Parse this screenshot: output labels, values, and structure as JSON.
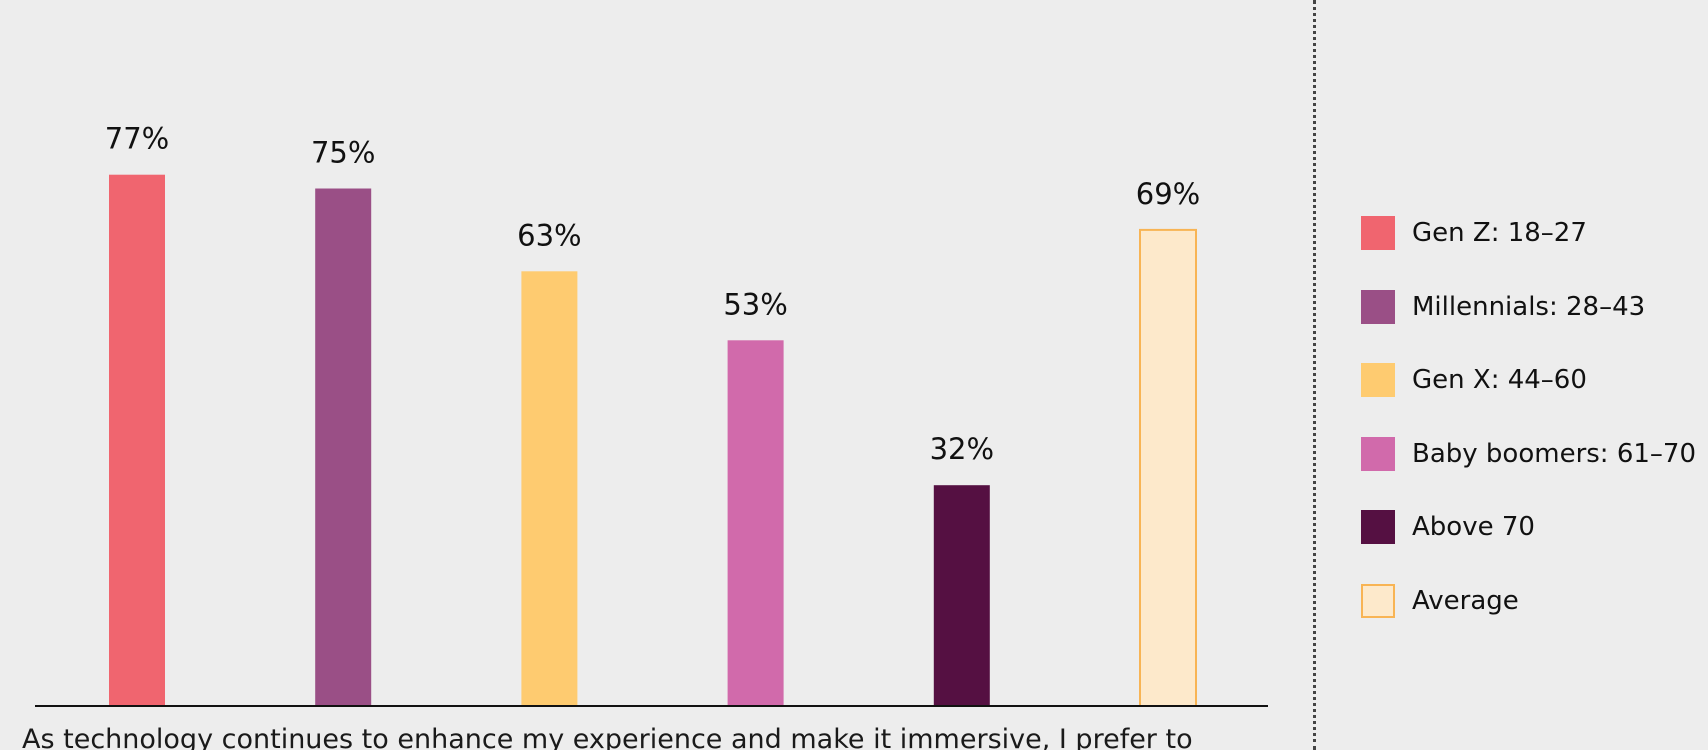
{
  "chart_data": {
    "type": "bar",
    "categories": [
      "Gen Z: 18–27",
      "Millennials: 28–43",
      "Gen X: 44–60",
      "Baby boomers: 61–70",
      "Above 70",
      "Average"
    ],
    "values": [
      77,
      75,
      63,
      53,
      32,
      69
    ],
    "value_labels": [
      "77%",
      "75%",
      "63%",
      "53%",
      "32%",
      "69%"
    ],
    "unit": "%",
    "colors": [
      "#f0656f",
      "#9a4f86",
      "#fecb70",
      "#d16aab",
      "#551042",
      "#fde9cb"
    ],
    "outline_colors": [
      null,
      null,
      null,
      null,
      null,
      "#f8b454"
    ],
    "ylim": [
      0,
      80
    ],
    "grid": false,
    "legend_position": "right",
    "caption": "As technology continues to enhance my experience and make it immersive, I prefer to"
  }
}
